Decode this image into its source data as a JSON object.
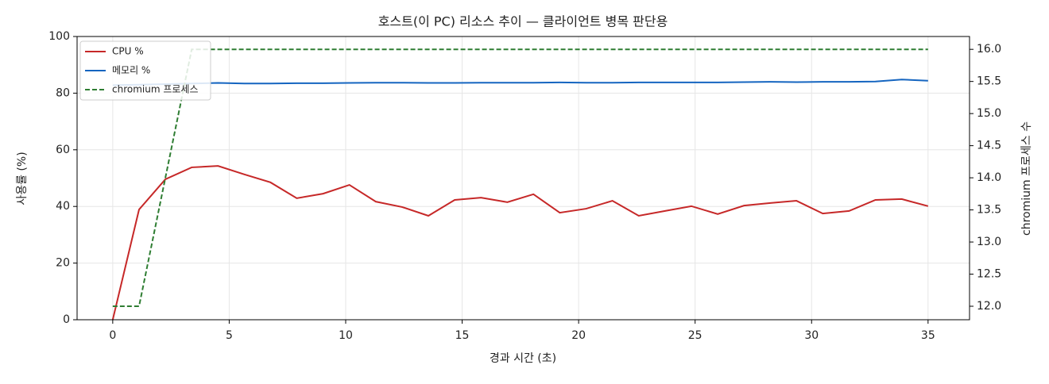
{
  "chart_data": {
    "type": "line",
    "title": "호스트(이 PC) 리소스 추이 — 클라이언트 병목 판단용",
    "xlabel": "경과 시간 (초)",
    "ylabel": "사용률 (%)",
    "y2label": "chromium 프로세스 수",
    "x": [
      0,
      1.13,
      2.26,
      3.39,
      4.52,
      5.65,
      6.77,
      7.9,
      9.03,
      10.16,
      11.29,
      12.42,
      13.55,
      14.68,
      15.81,
      16.94,
      18.06,
      19.19,
      20.32,
      21.45,
      22.58,
      23.71,
      24.84,
      25.97,
      27.1,
      28.23,
      29.35,
      30.48,
      31.61,
      32.74,
      33.87,
      35
    ],
    "series": [
      {
        "name": "CPU %",
        "color": "#c62828",
        "dash": false,
        "values": [
          0,
          38.9,
          49.6,
          53.8,
          54.3,
          51.3,
          48.5,
          42.9,
          44.5,
          47.6,
          41.7,
          39.8,
          36.7,
          42.3,
          43.1,
          41.5,
          44.3,
          37.8,
          39.2,
          42.0,
          36.7,
          38.4,
          40.1,
          37.3,
          40.3,
          41.2,
          42.0,
          37.5,
          38.4,
          42.3,
          42.6,
          40.1
        ]
      },
      {
        "name": "메모리 %",
        "color": "#1565c0",
        "dash": false,
        "values": [
          82.8,
          83.0,
          83.2,
          83.4,
          83.6,
          83.4,
          83.4,
          83.5,
          83.5,
          83.6,
          83.7,
          83.7,
          83.6,
          83.6,
          83.7,
          83.7,
          83.7,
          83.8,
          83.7,
          83.7,
          83.8,
          83.8,
          83.8,
          83.8,
          83.9,
          84.0,
          83.9,
          84.0,
          84.0,
          84.1,
          84.8,
          84.4
        ]
      },
      {
        "name": "chromium 프로세스",
        "color": "#2e7d32",
        "dash": true,
        "axis": "y2",
        "values": [
          12,
          12,
          14,
          16,
          16,
          16,
          16,
          16,
          16,
          16,
          16,
          16,
          16,
          16,
          16,
          16,
          16,
          16,
          16,
          16,
          16,
          16,
          16,
          16,
          16,
          16,
          16,
          16,
          16,
          16,
          16,
          16
        ]
      }
    ],
    "xlim": [
      -1.53,
      36.78
    ],
    "xticks": [
      0,
      5,
      10,
      15,
      20,
      25,
      30,
      35
    ],
    "ylim": [
      0,
      100
    ],
    "yticks": [
      0,
      20,
      40,
      60,
      80,
      100
    ],
    "y2lim": [
      11.79,
      16.2
    ],
    "y2ticks": [
      {
        "value": 12,
        "label": "12.0"
      },
      12.5,
      {
        "value": 13,
        "label": "13.0"
      },
      13.5,
      {
        "value": 14,
        "label": "14.0"
      },
      14.5,
      {
        "value": 15,
        "label": "15.0"
      },
      15.5,
      {
        "value": 16,
        "label": "16.0"
      }
    ],
    "grid": true,
    "legend": "upper-left"
  }
}
